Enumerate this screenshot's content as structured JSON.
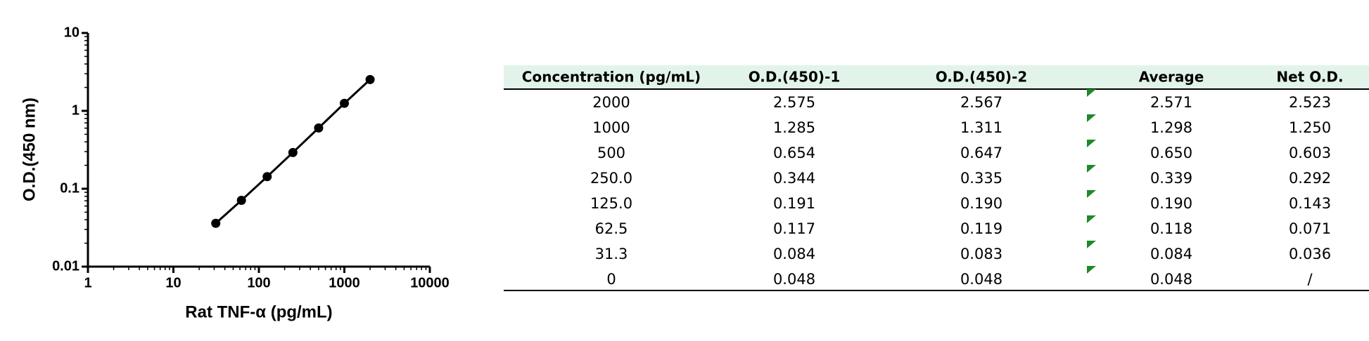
{
  "chart_data": {
    "type": "scatter",
    "x_label": "Rat TNF-α (pg/mL)",
    "y_label": "O.D.(450 nm)",
    "x": [
      31.3,
      62.5,
      125,
      250,
      500,
      1000,
      2000
    ],
    "y": [
      0.036,
      0.071,
      0.143,
      0.292,
      0.603,
      1.25,
      2.523
    ],
    "color": "#000000",
    "connect_points": true,
    "x_log": true,
    "y_log": true,
    "xlim": [
      1,
      10000
    ],
    "xticks": [
      1,
      10,
      100,
      1000,
      10000
    ],
    "ylim": [
      0.01,
      10
    ],
    "yticks": [
      0.01,
      0.1,
      1,
      10
    ]
  },
  "table": {
    "headers": [
      "Concentration (pg/mL)",
      "O.D.(450)-1",
      "O.D.(450)-2",
      "Average",
      "Net O.D."
    ],
    "rows": [
      [
        "2000",
        "2.575",
        "2.567",
        "2.571",
        "2.523"
      ],
      [
        "1000",
        "1.285",
        "1.311",
        "1.298",
        "1.250"
      ],
      [
        "500",
        "0.654",
        "0.647",
        "0.650",
        "0.603"
      ],
      [
        "250.0",
        "0.344",
        "0.335",
        "0.339",
        "0.292"
      ],
      [
        "125.0",
        "0.191",
        "0.190",
        "0.190",
        "0.143"
      ],
      [
        "62.5",
        "0.117",
        "0.119",
        "0.118",
        "0.071"
      ],
      [
        "31.3",
        "0.084",
        "0.083",
        "0.084",
        "0.036"
      ],
      [
        "0",
        "0.048",
        "0.048",
        "0.048",
        "/"
      ]
    ]
  }
}
